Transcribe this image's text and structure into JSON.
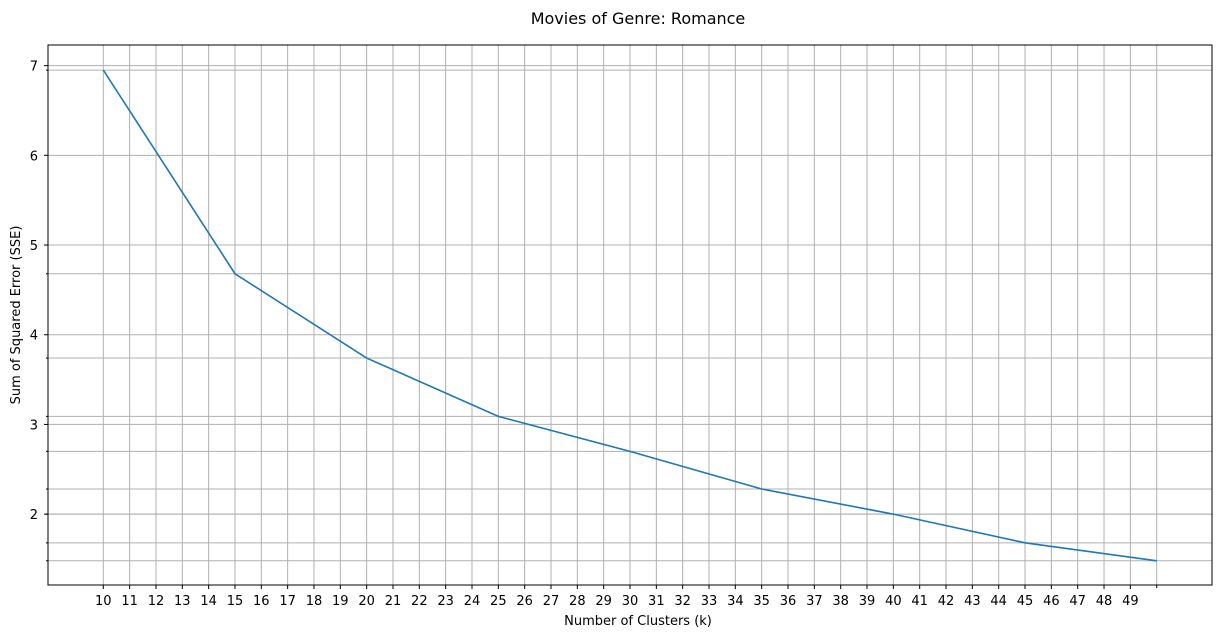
{
  "chart_data": {
    "type": "line",
    "title": "Movies of Genre: Romance",
    "xlabel": "Number of Clusters (k)",
    "ylabel": "Sum of Squared Error (SSE)",
    "x_ticks": [
      10,
      11,
      12,
      13,
      14,
      15,
      16,
      17,
      18,
      19,
      20,
      21,
      22,
      23,
      24,
      25,
      26,
      27,
      28,
      29,
      30,
      31,
      32,
      33,
      34,
      35,
      36,
      37,
      38,
      39,
      40,
      41,
      42,
      43,
      44,
      45,
      46,
      47,
      48,
      49
    ],
    "y_ticks": [
      2,
      3,
      4,
      5,
      6,
      7
    ],
    "y_minor_gridlines": [
      1.48,
      1.68,
      2.0,
      2.28,
      2.7,
      3.09,
      3.74,
      4.68,
      6.95
    ],
    "xlim": [
      7.9,
      52.1
    ],
    "ylim": [
      1.21,
      7.23
    ],
    "grid": true,
    "series": [
      {
        "color": "#1f77b4",
        "x": [
          10,
          15,
          20,
          25,
          30,
          35,
          40,
          45,
          50
        ],
        "y": [
          6.95,
          4.68,
          3.74,
          3.09,
          2.7,
          2.28,
          2.0,
          1.68,
          1.48
        ]
      }
    ]
  }
}
